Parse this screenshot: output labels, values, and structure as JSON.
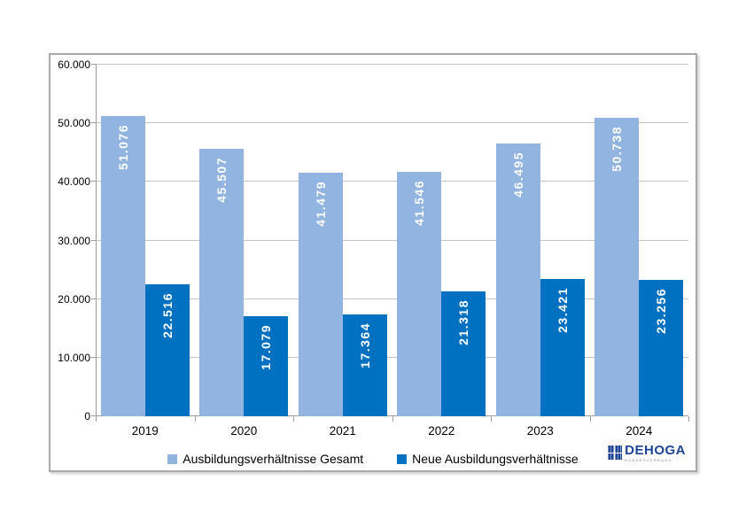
{
  "chart_data": {
    "type": "bar",
    "title": "",
    "categories": [
      "2019",
      "2020",
      "2021",
      "2022",
      "2023",
      "2024"
    ],
    "series": [
      {
        "name": "Ausbildungsverhältnisse Gesamt",
        "color": "#92b4e0",
        "values": [
          51076,
          45507,
          41479,
          41546,
          46495,
          50738
        ],
        "value_labels": [
          "51.076",
          "45.507",
          "41.479",
          "41.546",
          "46.495",
          "50.738"
        ]
      },
      {
        "name": "Neue Ausbildungsverhältnisse",
        "color": "#0070c0",
        "values": [
          22516,
          17079,
          17364,
          21318,
          23421,
          23256
        ],
        "value_labels": [
          "22.516",
          "17.079",
          "17.364",
          "21.318",
          "23.421",
          "23.256"
        ]
      }
    ],
    "ylim": [
      0,
      60000
    ],
    "yticks": [
      0,
      10000,
      20000,
      30000,
      40000,
      50000,
      60000
    ],
    "ytick_labels": [
      "0",
      "10.000",
      "20.000",
      "30.000",
      "40.000",
      "50.000",
      "60.000"
    ],
    "grid": true,
    "legend_position": "bottom",
    "value_label_color": "#ffffff",
    "value_label_rotation": "rotate-up-90"
  },
  "logo": {
    "text": "DEHOGA",
    "subtext": "BUNDESVERBAND",
    "color": "#1d4496"
  }
}
